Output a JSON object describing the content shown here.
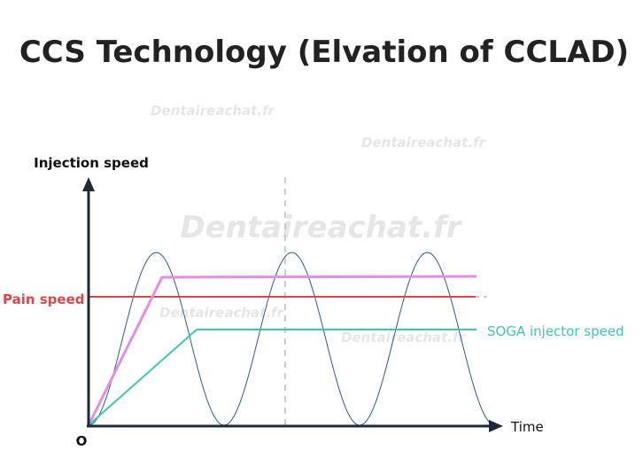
{
  "title": "CCS Technology (Elvation of CCLAD)",
  "y_axis_label": "Injection speed",
  "x_axis_label": "Time",
  "origin_label": "O",
  "pain_label": "Pain speed",
  "soga_label": "SOGA injector speed",
  "watermarks": [
    "Dentaireachat.fr",
    "Dentaireachat.fr",
    "Dentaireachat.fr",
    "Dentaireachat.fr",
    "Dentaireachat.fr"
  ]
}
